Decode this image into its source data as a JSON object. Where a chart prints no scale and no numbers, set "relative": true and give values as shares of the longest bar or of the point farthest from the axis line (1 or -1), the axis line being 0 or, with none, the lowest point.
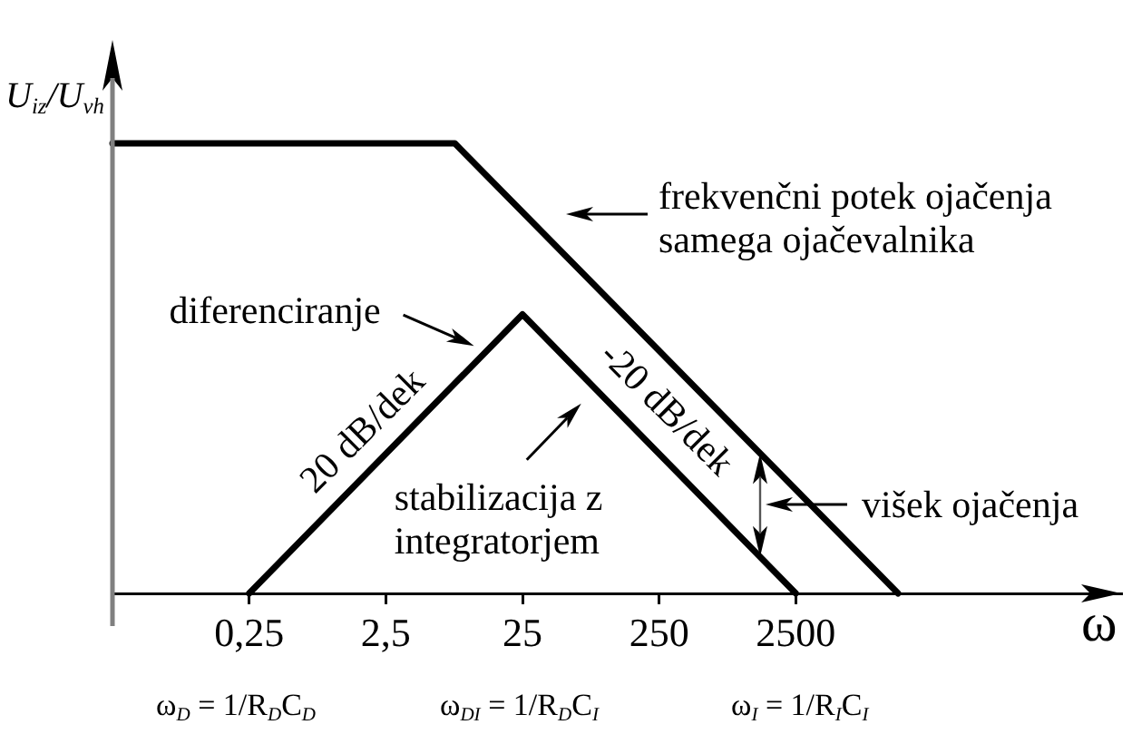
{
  "chart_data": {
    "type": "line",
    "relative": true,
    "log": "x",
    "xlabel": "ω",
    "ylabel": "U$_{iz}$/U$_{vh}$",
    "xlim": [
      0.025,
      600000
    ],
    "xticks": [
      {
        "value": 0.025,
        "label": null
      },
      {
        "value": 0.25,
        "label": "0,25"
      },
      {
        "value": 2.5,
        "label": "2,5"
      },
      25,
      250,
      2500
    ],
    "series": [
      {
        "x": [
          0.025,
          8,
          14000
        ],
        "values": [
          1,
          1,
          0
        ],
        "color": "#000000"
      },
      {
        "x": [
          0.25,
          25,
          2500
        ],
        "values": [
          0,
          0.62,
          0
        ],
        "color": "#000000"
      }
    ],
    "annotations": [
      "frekvenčni potek ojačenja samega ojačevalnika",
      {
        "text": "diferenciranje",
        "x": 15,
        "y": 0.55
      },
      {
        "text": "20 dB/dek",
        "x": 2.5,
        "y": 0.31
      },
      "-20 dB/dek",
      {
        "text": "stabilizacija z integratorjem",
        "x": 100,
        "y": 0.43
      },
      "višek ojačenja",
      "ω$_{D}$ = 1/R$_{D}$C$_{D}$",
      "ω$_{DI}$ = 1/R$_{D}$C$_{I}$",
      "ω$_{I}$ = 1/R$_{I}$C$_{I}$"
    ]
  }
}
